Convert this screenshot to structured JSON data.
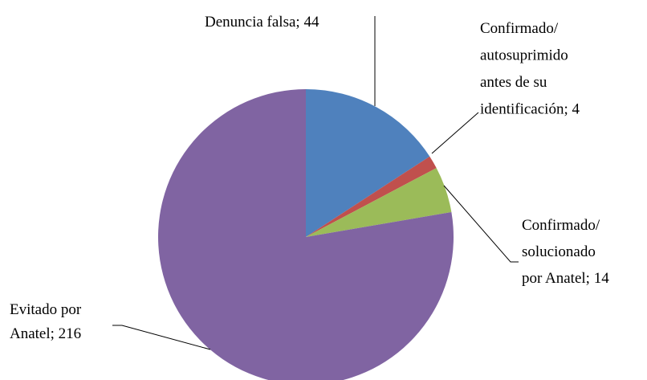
{
  "chart_data": {
    "type": "pie",
    "values": [
      44,
      4,
      14,
      216
    ],
    "value_labels": [
      [
        "Denuncia falsa; 44"
      ],
      [
        "Confirmado/",
        "autosuprimido",
        "antes de su",
        "identificación; 4"
      ],
      [
        "Confirmado/",
        "solucionado",
        "por Anatel; 14"
      ],
      [
        "Evitado por",
        "Anatel; 216"
      ]
    ],
    "colors": [
      "#4f81bd",
      "#c0504d",
      "#9bbb59",
      "#8064a2"
    ]
  }
}
